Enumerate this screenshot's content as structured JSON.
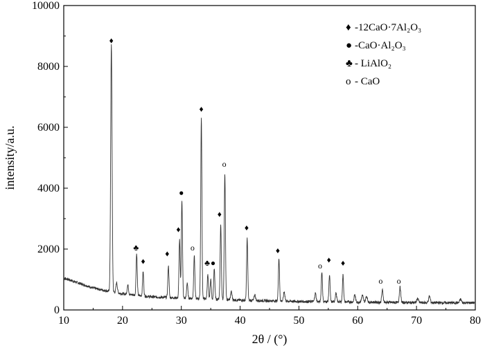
{
  "chart_data": {
    "type": "line",
    "title": "",
    "xlabel": "2θ / (°)",
    "ylabel": "intensity/a.u.",
    "xlim": [
      10,
      80
    ],
    "ylim": [
      0,
      10000
    ],
    "x_ticks": [
      10,
      20,
      30,
      40,
      50,
      60,
      70,
      80
    ],
    "y_ticks": [
      0,
      2000,
      4000,
      6000,
      8000,
      10000
    ],
    "grid": false,
    "legend_position": "top-right",
    "legend": [
      {
        "symbol": "♦",
        "label": "-12CaO·7Al₂O₃"
      },
      {
        "symbol": "●",
        "label": "-CaO·Al₂O₃"
      },
      {
        "symbol": "♣",
        "label": "- LiAlO₂"
      },
      {
        "symbol": "o",
        "label": "- CaO"
      }
    ],
    "baseline": [
      [
        10,
        1050
      ],
      [
        12,
        920
      ],
      [
        15,
        720
      ],
      [
        18,
        600
      ],
      [
        20,
        530
      ],
      [
        25,
        430
      ],
      [
        30,
        390
      ],
      [
        35,
        360
      ],
      [
        40,
        320
      ],
      [
        45,
        300
      ],
      [
        50,
        280
      ],
      [
        55,
        270
      ],
      [
        60,
        260
      ],
      [
        65,
        250
      ],
      [
        70,
        240
      ],
      [
        75,
        235
      ],
      [
        80,
        235
      ]
    ],
    "peaks": [
      {
        "x": 18.1,
        "y": 8700,
        "w": 0.12
      },
      {
        "x": 19.0,
        "y": 900,
        "w": 0.12
      },
      {
        "x": 20.9,
        "y": 820,
        "w": 0.12
      },
      {
        "x": 22.4,
        "y": 1850,
        "w": 0.1
      },
      {
        "x": 23.5,
        "y": 1250,
        "w": 0.1
      },
      {
        "x": 27.8,
        "y": 1450,
        "w": 0.1
      },
      {
        "x": 29.7,
        "y": 2300,
        "w": 0.1
      },
      {
        "x": 30.1,
        "y": 3600,
        "w": 0.1
      },
      {
        "x": 31.0,
        "y": 900,
        "w": 0.1
      },
      {
        "x": 32.2,
        "y": 1800,
        "w": 0.1
      },
      {
        "x": 33.4,
        "y": 6300,
        "w": 0.1
      },
      {
        "x": 34.5,
        "y": 1150,
        "w": 0.1
      },
      {
        "x": 35.0,
        "y": 1000,
        "w": 0.1
      },
      {
        "x": 35.6,
        "y": 1350,
        "w": 0.1
      },
      {
        "x": 36.7,
        "y": 2800,
        "w": 0.1
      },
      {
        "x": 37.4,
        "y": 4500,
        "w": 0.1
      },
      {
        "x": 38.5,
        "y": 600,
        "w": 0.12
      },
      {
        "x": 41.2,
        "y": 2350,
        "w": 0.1
      },
      {
        "x": 42.5,
        "y": 500,
        "w": 0.12
      },
      {
        "x": 46.6,
        "y": 1700,
        "w": 0.1
      },
      {
        "x": 47.5,
        "y": 600,
        "w": 0.12
      },
      {
        "x": 52.8,
        "y": 550,
        "w": 0.12
      },
      {
        "x": 53.9,
        "y": 1250,
        "w": 0.1
      },
      {
        "x": 55.2,
        "y": 1150,
        "w": 0.1
      },
      {
        "x": 56.3,
        "y": 550,
        "w": 0.12
      },
      {
        "x": 57.5,
        "y": 1150,
        "w": 0.1
      },
      {
        "x": 59.5,
        "y": 500,
        "w": 0.12
      },
      {
        "x": 60.8,
        "y": 480,
        "w": 0.14
      },
      {
        "x": 61.5,
        "y": 450,
        "w": 0.14
      },
      {
        "x": 64.2,
        "y": 650,
        "w": 0.12
      },
      {
        "x": 67.2,
        "y": 750,
        "w": 0.12
      },
      {
        "x": 70.2,
        "y": 380,
        "w": 0.14
      },
      {
        "x": 72.2,
        "y": 450,
        "w": 0.14
      },
      {
        "x": 77.5,
        "y": 350,
        "w": 0.14
      }
    ],
    "annotations": [
      {
        "symbol": "♦",
        "x": 18.1,
        "y": 8850
      },
      {
        "symbol": "♣",
        "x": 22.3,
        "y": 2050
      },
      {
        "symbol": "♦",
        "x": 23.5,
        "y": 1600
      },
      {
        "symbol": "♦",
        "x": 27.6,
        "y": 1850
      },
      {
        "symbol": "♦",
        "x": 29.5,
        "y": 2650
      },
      {
        "symbol": "●",
        "x": 30.0,
        "y": 3850
      },
      {
        "symbol": "o",
        "x": 31.9,
        "y": 2050
      },
      {
        "symbol": "♦",
        "x": 33.4,
        "y": 6600
      },
      {
        "symbol": "♣",
        "x": 34.4,
        "y": 1550
      },
      {
        "symbol": "●",
        "x": 35.4,
        "y": 1550
      },
      {
        "symbol": "♦",
        "x": 36.5,
        "y": 3150
      },
      {
        "symbol": "o",
        "x": 37.3,
        "y": 4800
      },
      {
        "symbol": "♦",
        "x": 41.1,
        "y": 2700
      },
      {
        "symbol": "♦",
        "x": 46.4,
        "y": 1950
      },
      {
        "symbol": "o",
        "x": 53.6,
        "y": 1450
      },
      {
        "symbol": "♦",
        "x": 55.1,
        "y": 1650
      },
      {
        "symbol": "♦",
        "x": 57.5,
        "y": 1550
      },
      {
        "symbol": "o",
        "x": 63.9,
        "y": 950
      },
      {
        "symbol": "o",
        "x": 67.0,
        "y": 950
      }
    ]
  }
}
